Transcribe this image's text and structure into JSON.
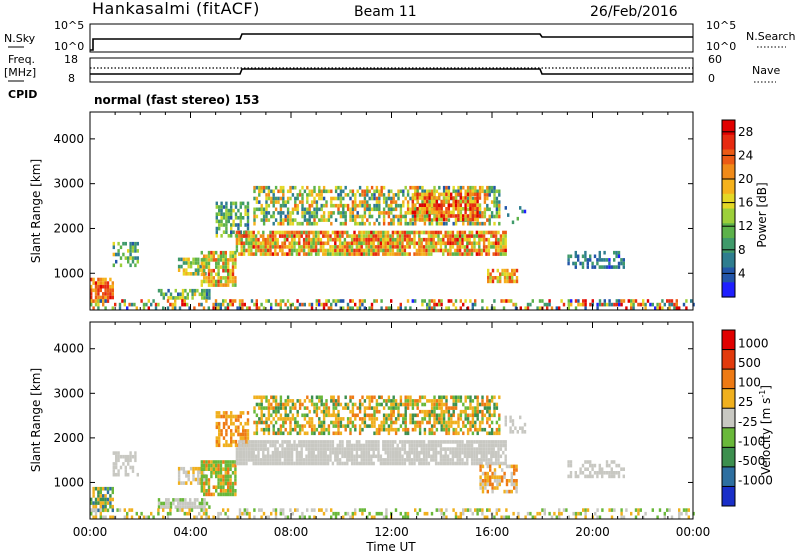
{
  "header": {
    "station": "Hankasalmi (fitACF)",
    "beam": "Beam 11",
    "date": "26/Feb/2016"
  },
  "status_panels": {
    "nsky_label": "N.Sky",
    "nsearch_label": "N.Search",
    "nsky_ticks": [
      "10^5",
      "10^0"
    ],
    "nsearch_ticks": [
      "10^5",
      "10^0"
    ],
    "freq_label": "Freq.",
    "freq_unit": "[MHz]",
    "freq_ticks": [
      "18",
      "8"
    ],
    "nave_label": "Nave",
    "nave_ticks": [
      "60",
      "0"
    ],
    "cpid_label": "CPID",
    "cpid_text": "normal (fast stereo) 153"
  },
  "chart_data": [
    {
      "type": "heatmap",
      "name": "power",
      "ylabel": "Slant Range [km]",
      "xlabel": "",
      "ylim": [
        180,
        4600
      ],
      "y_ticks": [
        "4000",
        "3000",
        "2000",
        "1000"
      ],
      "y_tick_values": [
        4000,
        3000,
        2000,
        1000
      ],
      "x_range_hours": [
        0,
        24
      ],
      "colorbar": {
        "label": "Power [dB]",
        "ticks": [
          "28",
          "24",
          "20",
          "16",
          "12",
          "8",
          "4"
        ],
        "tick_values": [
          28,
          24,
          20,
          16,
          12,
          8,
          4
        ],
        "range": [
          0,
          30
        ],
        "colors": [
          "#1f1fff",
          "#2255a8",
          "#2e7d8f",
          "#3f9a6a",
          "#5cb24a",
          "#9ccf3a",
          "#e4d826",
          "#f5b21c",
          "#f08a18",
          "#ec5a14",
          "#e72a10",
          "#e00000"
        ]
      },
      "regions": [
        {
          "t0": 0.0,
          "t1": 0.9,
          "r0": 350,
          "r1": 900,
          "v0": 18,
          "v1": 28,
          "d": 0.8
        },
        {
          "t0": 0.9,
          "t1": 1.9,
          "r0": 1200,
          "r1": 1700,
          "v0": 4,
          "v1": 18,
          "d": 0.5
        },
        {
          "t0": 3.5,
          "t1": 4.6,
          "r0": 1000,
          "r1": 1350,
          "v0": 6,
          "v1": 20,
          "d": 0.7
        },
        {
          "t0": 2.7,
          "t1": 4.8,
          "r0": 420,
          "r1": 650,
          "v0": 4,
          "v1": 18,
          "d": 0.7
        },
        {
          "t0": 4.4,
          "t1": 5.8,
          "r0": 700,
          "r1": 1500,
          "v0": 10,
          "v1": 26,
          "d": 0.8
        },
        {
          "t0": 5.0,
          "t1": 6.3,
          "r0": 1800,
          "r1": 2600,
          "v0": 4,
          "v1": 16,
          "d": 0.6
        },
        {
          "t0": 5.8,
          "t1": 16.5,
          "r0": 1450,
          "r1": 1950,
          "v0": 10,
          "v1": 28,
          "d": 0.85
        },
        {
          "t0": 6.5,
          "t1": 16.3,
          "r0": 2100,
          "r1": 2950,
          "v0": 4,
          "v1": 24,
          "d": 0.6
        },
        {
          "t0": 12.8,
          "t1": 15.5,
          "r0": 2200,
          "r1": 2800,
          "v0": 14,
          "v1": 30,
          "d": 0.8
        },
        {
          "t0": 15.8,
          "t1": 17.0,
          "r0": 800,
          "r1": 1100,
          "v0": 14,
          "v1": 26,
          "d": 0.8
        },
        {
          "t0": 16.5,
          "t1": 17.3,
          "r0": 2100,
          "r1": 2500,
          "v0": 2,
          "v1": 12,
          "d": 0.3
        },
        {
          "t0": 19.0,
          "t1": 21.2,
          "r0": 1100,
          "r1": 1500,
          "v0": 2,
          "v1": 10,
          "d": 0.5
        },
        {
          "t0": 0.0,
          "t1": 24.0,
          "r0": 180,
          "r1": 420,
          "v0": 2,
          "v1": 30,
          "d": 0.4
        }
      ]
    },
    {
      "type": "heatmap",
      "name": "velocity",
      "ylabel": "Slant Range [km]",
      "xlabel": "Time UT",
      "ylim": [
        180,
        4600
      ],
      "y_ticks": [
        "4000",
        "3000",
        "2000",
        "1000"
      ],
      "y_tick_values": [
        4000,
        3000,
        2000,
        1000
      ],
      "x_range_hours": [
        0,
        24
      ],
      "x_ticks": [
        "00:00",
        "04:00",
        "08:00",
        "12:00",
        "16:00",
        "20:00",
        "00:00"
      ],
      "x_tick_hours": [
        0,
        4,
        8,
        12,
        16,
        20,
        24
      ],
      "colorbar": {
        "label": "Velocity [m s",
        "label_sup": "-1",
        "label_end": "]",
        "ticks": [
          "1000",
          "500",
          "100",
          "25",
          "-25",
          "-100",
          "-500",
          "-1000"
        ],
        "colors": [
          "#1a2fc8",
          "#2e6fa0",
          "#3c8f4e",
          "#69b83a",
          "#c8c8c2",
          "#f0b01e",
          "#ee7a14",
          "#e23a0c",
          "#e00000"
        ]
      },
      "regions": [
        {
          "t0": 0.0,
          "t1": 0.9,
          "r0": 350,
          "r1": 900,
          "c": [
            1,
            2,
            3,
            5
          ],
          "d": 0.7
        },
        {
          "t0": 0.9,
          "t1": 1.9,
          "r0": 1200,
          "r1": 1700,
          "c": [
            4
          ],
          "d": 0.5
        },
        {
          "t0": 3.5,
          "t1": 4.6,
          "r0": 1000,
          "r1": 1350,
          "c": [
            4,
            4,
            5
          ],
          "d": 0.7
        },
        {
          "t0": 2.7,
          "t1": 4.8,
          "r0": 420,
          "r1": 650,
          "c": [
            4,
            4,
            3
          ],
          "d": 0.7
        },
        {
          "t0": 4.4,
          "t1": 5.8,
          "r0": 700,
          "r1": 1500,
          "c": [
            3,
            3,
            5,
            6
          ],
          "d": 0.8
        },
        {
          "t0": 5.0,
          "t1": 6.3,
          "r0": 1800,
          "r1": 2600,
          "c": [
            5,
            6
          ],
          "d": 0.6
        },
        {
          "t0": 5.8,
          "t1": 16.5,
          "r0": 1450,
          "r1": 1950,
          "c": [
            4
          ],
          "d": 0.85
        },
        {
          "t0": 6.5,
          "t1": 16.3,
          "r0": 2100,
          "r1": 2950,
          "c": [
            5,
            5,
            6,
            3,
            2
          ],
          "d": 0.6
        },
        {
          "t0": 15.5,
          "t1": 17.0,
          "r0": 800,
          "r1": 1400,
          "c": [
            4,
            5,
            6
          ],
          "d": 0.6
        },
        {
          "t0": 16.5,
          "t1": 17.3,
          "r0": 2100,
          "r1": 2500,
          "c": [
            4
          ],
          "d": 0.3
        },
        {
          "t0": 19.0,
          "t1": 21.2,
          "r0": 1100,
          "r1": 1500,
          "c": [
            4
          ],
          "d": 0.5
        },
        {
          "t0": 0.0,
          "t1": 24.0,
          "r0": 180,
          "r1": 420,
          "c": [
            3,
            4,
            5
          ],
          "d": 0.35
        }
      ]
    }
  ]
}
